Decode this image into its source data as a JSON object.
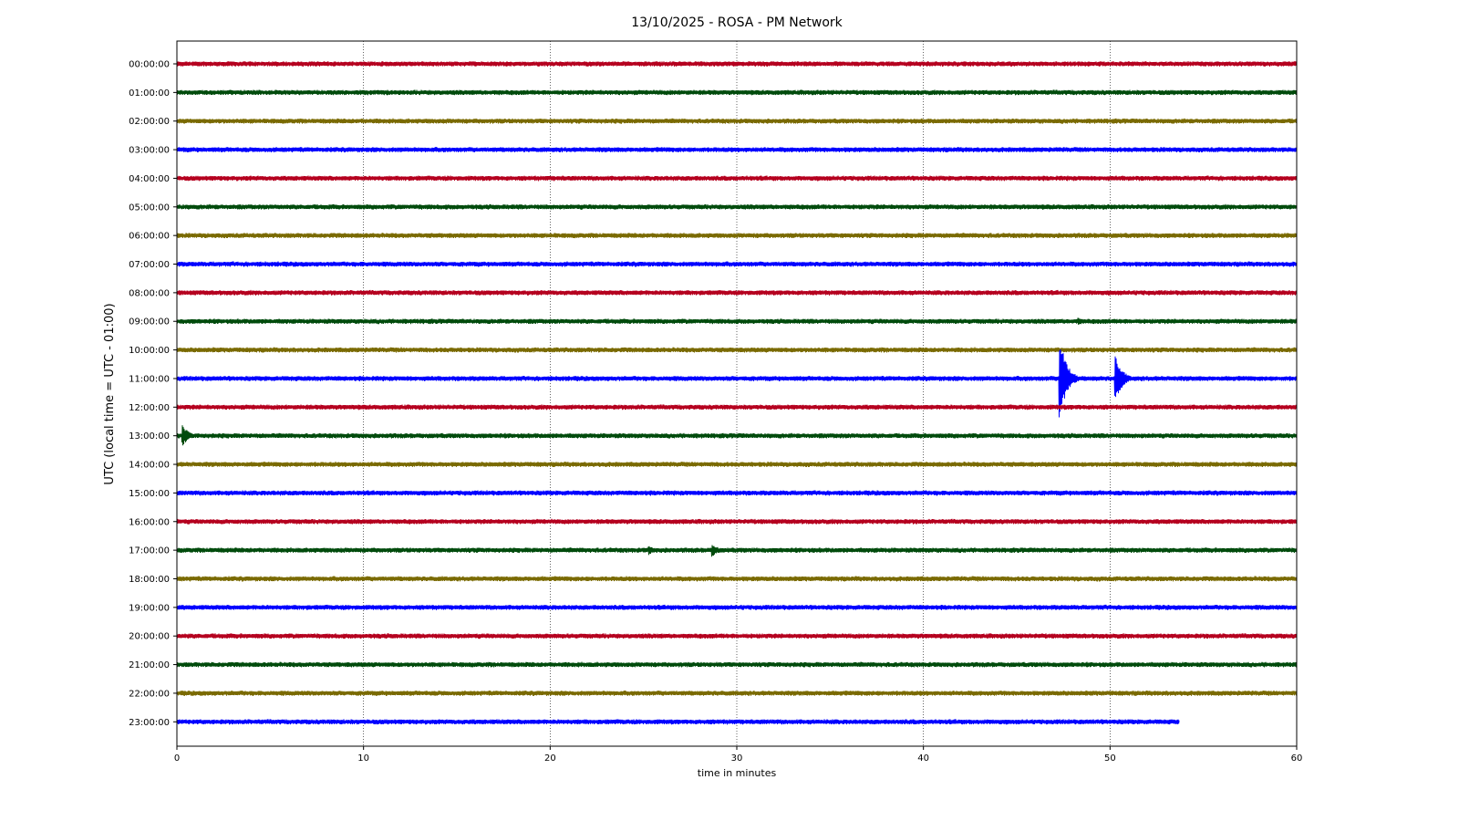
{
  "chart_data": {
    "type": "line",
    "title": "13/10/2025 - ROSA - PM Network",
    "xlabel": "time in minutes",
    "ylabel": "UTC (local time = UTC - 01:00)",
    "xlim": [
      0,
      60
    ],
    "xticks": [
      0,
      10,
      20,
      30,
      40,
      50,
      60
    ],
    "grid": "vertical dotted",
    "colors": [
      "#b5001f",
      "#004b0c",
      "#7a6a00",
      "#0000ff"
    ],
    "series": [
      {
        "label": "00:00:00",
        "end_minute": 60,
        "events": []
      },
      {
        "label": "01:00:00",
        "end_minute": 60,
        "events": []
      },
      {
        "label": "02:00:00",
        "end_minute": 60,
        "events": []
      },
      {
        "label": "03:00:00",
        "end_minute": 60,
        "events": []
      },
      {
        "label": "04:00:00",
        "end_minute": 60,
        "events": []
      },
      {
        "label": "05:00:00",
        "end_minute": 60,
        "events": []
      },
      {
        "label": "06:00:00",
        "end_minute": 60,
        "events": []
      },
      {
        "label": "07:00:00",
        "end_minute": 60,
        "events": []
      },
      {
        "label": "08:00:00",
        "end_minute": 60,
        "events": []
      },
      {
        "label": "09:00:00",
        "end_minute": 60,
        "events": [
          {
            "minute": 48.3,
            "amplitude": 0.15
          }
        ]
      },
      {
        "label": "10:00:00",
        "end_minute": 60,
        "events": []
      },
      {
        "label": "11:00:00",
        "end_minute": 60,
        "events": [
          {
            "minute": 47.3,
            "amplitude": 1.7
          },
          {
            "minute": 50.3,
            "amplitude": 0.9
          }
        ]
      },
      {
        "label": "12:00:00",
        "end_minute": 60,
        "events": []
      },
      {
        "label": "13:00:00",
        "end_minute": 60,
        "events": [
          {
            "minute": 0.3,
            "amplitude": 0.4
          }
        ]
      },
      {
        "label": "14:00:00",
        "end_minute": 60,
        "events": []
      },
      {
        "label": "15:00:00",
        "end_minute": 60,
        "events": []
      },
      {
        "label": "16:00:00",
        "end_minute": 60,
        "events": []
      },
      {
        "label": "17:00:00",
        "end_minute": 60,
        "events": [
          {
            "minute": 25.3,
            "amplitude": 0.18
          },
          {
            "minute": 28.7,
            "amplitude": 0.25
          }
        ]
      },
      {
        "label": "18:00:00",
        "end_minute": 60,
        "events": []
      },
      {
        "label": "19:00:00",
        "end_minute": 60,
        "events": []
      },
      {
        "label": "20:00:00",
        "end_minute": 60,
        "events": []
      },
      {
        "label": "21:00:00",
        "end_minute": 60,
        "events": []
      },
      {
        "label": "22:00:00",
        "end_minute": 60,
        "events": []
      },
      {
        "label": "23:00:00",
        "end_minute": 53.7,
        "events": []
      }
    ]
  }
}
